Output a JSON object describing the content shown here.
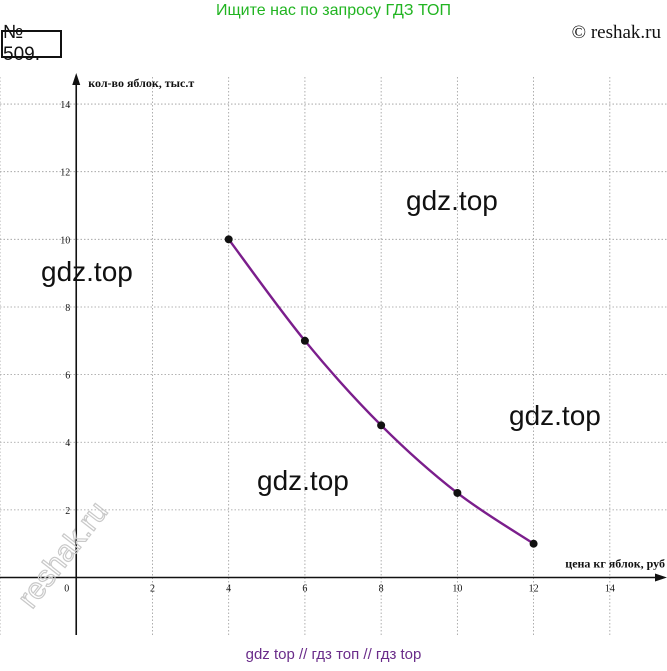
{
  "header": {
    "banner": "Ищите нас по запросу ГДЗ ТОП",
    "copyright": "© reshak.ru",
    "task_number": "№ 509."
  },
  "watermarks": {
    "gdz": [
      "gdz.top",
      "gdz.top",
      "gdz.top",
      "gdz.top"
    ],
    "reshak": "reshak.ru"
  },
  "footer": {
    "banner": "gdz top  //  гдз топ  //  гдз top"
  },
  "colors": {
    "curve": "#7b1e8c",
    "banner": "#21b421",
    "footer": "#6a2c8a",
    "grid": "#9a9a9a"
  },
  "chart_data": {
    "type": "line",
    "title": "",
    "xlabel": "цена кг яблок, руб",
    "ylabel": "кол-во яблок, тыс.т",
    "xlim": [
      -2,
      15.5
    ],
    "ylim": [
      -1.7,
      14.8
    ],
    "x_ticks": [
      2,
      4,
      6,
      8,
      10,
      12,
      14
    ],
    "y_ticks": [
      2,
      4,
      6,
      8,
      10,
      12,
      14
    ],
    "origin_label": "0",
    "grid": true,
    "series": [
      {
        "x": [
          4,
          6,
          8,
          10,
          12
        ],
        "y": [
          10,
          7,
          4.5,
          2.5,
          1
        ],
        "markers": true,
        "smooth": true
      }
    ]
  }
}
